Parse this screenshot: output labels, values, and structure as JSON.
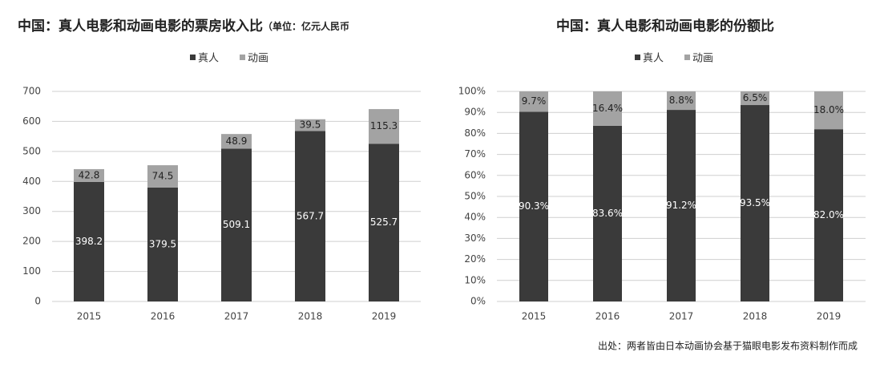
{
  "chart_data": [
    {
      "type": "stacked_bar",
      "title": "中国：真人电影和动画电影的票房收入比",
      "subtitle": "（单位：亿元人民币",
      "categories": [
        "2015",
        "2016",
        "2017",
        "2018",
        "2019"
      ],
      "series": [
        {
          "name": "真人",
          "color": "#3a3a3a",
          "values": [
            398.2,
            379.5,
            509.1,
            567.7,
            525.7
          ]
        },
        {
          "name": "动画",
          "color": "#a3a3a3",
          "values": [
            42.8,
            74.5,
            48.9,
            39.5,
            115.3
          ]
        }
      ],
      "ylim": [
        0,
        700
      ],
      "yticks": [
        0,
        100,
        200,
        300,
        400,
        500,
        600,
        700
      ],
      "grid": true,
      "legend": "top"
    },
    {
      "type": "stacked_bar",
      "title": "中国：真人电影和动画电影的份额比",
      "categories": [
        "2015",
        "2016",
        "2017",
        "2018",
        "2019"
      ],
      "series": [
        {
          "name": "真人",
          "color": "#3a3a3a",
          "values": [
            90.3,
            83.6,
            91.2,
            93.5,
            82.0
          ],
          "value_labels": [
            "90.3%",
            "83.6%",
            "91.2%",
            "93.5%",
            "82.0%"
          ]
        },
        {
          "name": "动画",
          "color": "#a3a3a3",
          "values": [
            9.7,
            16.4,
            8.8,
            6.5,
            18.0
          ],
          "value_labels": [
            "9.7%",
            "16.4%",
            "8.8%",
            "6.5%",
            "18.0%"
          ]
        }
      ],
      "ylim": [
        0,
        100
      ],
      "yticks": [
        {
          "value": 0,
          "label": "0%"
        },
        {
          "value": 10,
          "label": "10%"
        },
        {
          "value": 20,
          "label": "20%"
        },
        {
          "value": 30,
          "label": "30%"
        },
        {
          "value": 40,
          "label": "40%"
        },
        {
          "value": 50,
          "label": "50%"
        },
        {
          "value": 60,
          "label": "60%"
        },
        {
          "value": 70,
          "label": "70%"
        },
        {
          "value": 80,
          "label": "80%"
        },
        {
          "value": 90,
          "label": "90%"
        },
        {
          "value": 100,
          "label": "100%"
        }
      ],
      "grid": true,
      "legend": "top",
      "source": "出处：两者皆由日本动画协会基于猫眼电影发布资料制作而成"
    }
  ]
}
